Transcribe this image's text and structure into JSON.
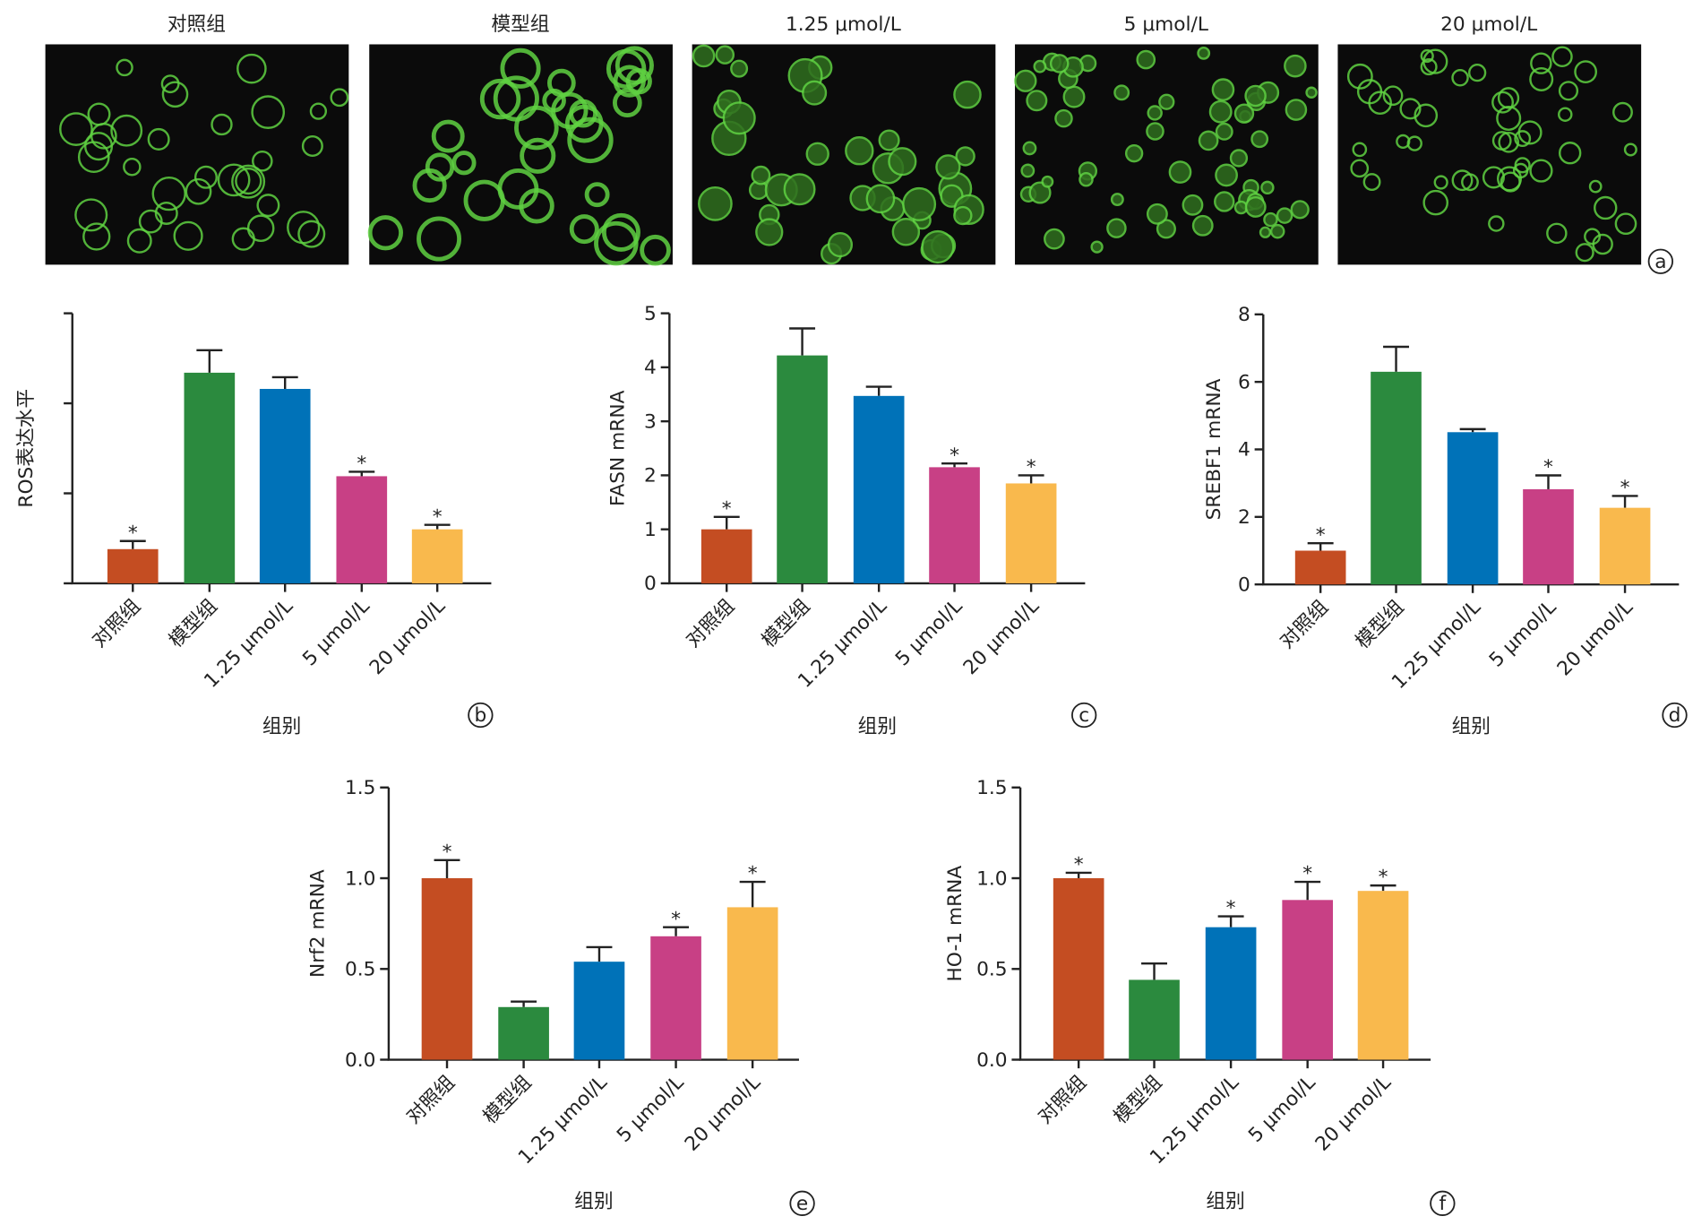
{
  "panel_a": {
    "titles": [
      "对照组",
      "模型组",
      "1.25 μmol/L",
      "5 μmol/L",
      "20 μmol/L"
    ],
    "tag": "a"
  },
  "chart_data": [
    {
      "type": "bar",
      "tag": "b",
      "ylabel": "ROS表达水平",
      "xlabel": "组别",
      "categories": [
        "对照组",
        "模型组",
        "1.25 μmol/L",
        "5 μmol/L",
        "20 μmol/L"
      ],
      "values": [
        0.38,
        2.34,
        2.16,
        1.19,
        0.6
      ],
      "errors": [
        0.09,
        0.25,
        0.13,
        0.05,
        0.05
      ],
      "markers": [
        "*",
        null,
        null,
        "*",
        "*"
      ],
      "colors": [
        "#c44d22",
        "#2b8a3e",
        "#0072b8",
        "#c84085",
        "#f9b94d"
      ],
      "ylim": [
        0,
        3
      ],
      "yticks": [
        0,
        1,
        2,
        3
      ],
      "ytick_labels": false
    },
    {
      "type": "bar",
      "tag": "c",
      "ylabel": "FASN mRNA",
      "xlabel": "组别",
      "categories": [
        "对照组",
        "模型组",
        "1.25 μmol/L",
        "5 μmol/L",
        "20 μmol/L"
      ],
      "values": [
        1.0,
        4.22,
        3.47,
        2.15,
        1.85
      ],
      "errors": [
        0.23,
        0.5,
        0.17,
        0.07,
        0.15
      ],
      "markers": [
        "*",
        null,
        null,
        "*",
        "*"
      ],
      "colors": [
        "#c44d22",
        "#2b8a3e",
        "#0072b8",
        "#c84085",
        "#f9b94d"
      ],
      "ylim": [
        0,
        5
      ],
      "yticks": [
        0,
        1,
        2,
        3,
        4,
        5
      ],
      "ytick_labels": true
    },
    {
      "type": "bar",
      "tag": "d",
      "ylabel": "SREBF1 mRNA",
      "xlabel": "组别",
      "categories": [
        "对照组",
        "模型组",
        "1.25 μmol/L",
        "5 μmol/L",
        "20 μmol/L"
      ],
      "values": [
        1.0,
        6.3,
        4.51,
        2.82,
        2.27
      ],
      "errors": [
        0.22,
        0.74,
        0.09,
        0.41,
        0.35
      ],
      "markers": [
        "*",
        null,
        null,
        "*",
        "*"
      ],
      "colors": [
        "#c44d22",
        "#2b8a3e",
        "#0072b8",
        "#c84085",
        "#f9b94d"
      ],
      "ylim": [
        0,
        8
      ],
      "yticks": [
        0,
        2,
        4,
        6,
        8
      ],
      "ytick_labels": true
    },
    {
      "type": "bar",
      "tag": "e",
      "ylabel": "Nrf2 mRNA",
      "xlabel": "组别",
      "categories": [
        "对照组",
        "模型组",
        "1.25 μmol/L",
        "5 μmol/L",
        "20 μmol/L"
      ],
      "values": [
        1.0,
        0.29,
        0.54,
        0.68,
        0.84
      ],
      "errors": [
        0.1,
        0.03,
        0.08,
        0.05,
        0.14
      ],
      "markers": [
        "*",
        null,
        null,
        "*",
        "*"
      ],
      "colors": [
        "#c44d22",
        "#2b8a3e",
        "#0072b8",
        "#c84085",
        "#f9b94d"
      ],
      "ylim": [
        0,
        1.5
      ],
      "yticks": [
        {
          "value": 0,
          "label": "0.0"
        },
        0.5,
        {
          "value": 1,
          "label": "1.0"
        },
        1.5
      ],
      "ytick_labels": true
    },
    {
      "type": "bar",
      "tag": "f",
      "ylabel": "HO-1 mRNA",
      "xlabel": "组别",
      "categories": [
        "对照组",
        "模型组",
        "1.25 μmol/L",
        "5 μmol/L",
        "20 μmol/L"
      ],
      "values": [
        1.0,
        0.44,
        0.73,
        0.88,
        0.93
      ],
      "errors": [
        0.03,
        0.09,
        0.06,
        0.1,
        0.03
      ],
      "markers": [
        "*",
        null,
        "*",
        "*",
        "*"
      ],
      "colors": [
        "#c44d22",
        "#2b8a3e",
        "#0072b8",
        "#c84085",
        "#f9b94d"
      ],
      "ylim": [
        0,
        1.5
      ],
      "yticks": [
        {
          "value": 0,
          "label": "0.0"
        },
        0.5,
        {
          "value": 1,
          "label": "1.0"
        },
        1.5
      ],
      "ytick_labels": true
    }
  ]
}
